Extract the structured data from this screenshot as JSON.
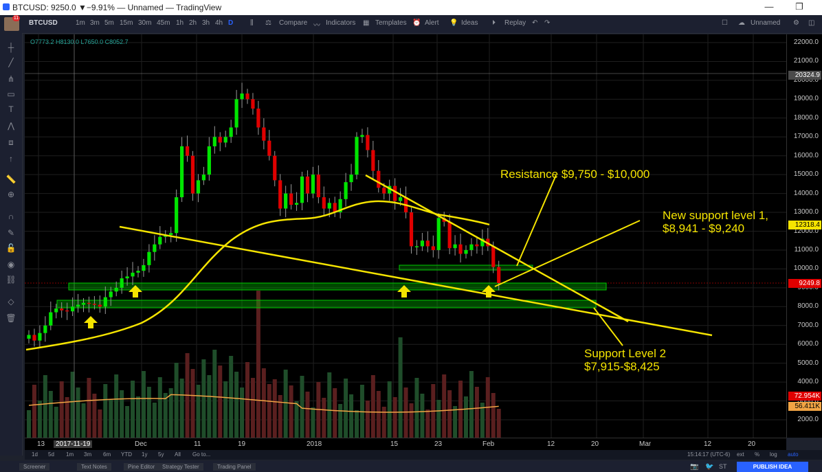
{
  "window": {
    "title": "BTCUSD: 9250.0 ▼−9.91% — Unnamed — TradingView",
    "minimize": "—",
    "restore": "❐"
  },
  "user": {
    "notification_count": "11"
  },
  "toolbar": {
    "symbol": "BTCUSD",
    "intervals": [
      "1m",
      "3m",
      "5m",
      "15m",
      "30m",
      "45m",
      "1h",
      "2h",
      "3h",
      "4h",
      "D"
    ],
    "active_interval": "D",
    "compare": "Compare",
    "indicators": "Indicators",
    "templates": "Templates",
    "alert": "Alert",
    "ideas": "Ideas",
    "replay": "Replay",
    "layout_name": "Unnamed"
  },
  "legend": {
    "ohlc": "O7773.2 H8130.0 L7650.0 C8052.7"
  },
  "colors": {
    "up": "#00e500",
    "down": "#e00000",
    "line": "#f5e400",
    "zone": "#00cc00",
    "ma": "#f2a444"
  },
  "price_axis": {
    "ticks": [
      "22000.0",
      "21000.0",
      "20000.0",
      "19000.0",
      "18000.0",
      "17000.0",
      "16000.0",
      "15000.0",
      "14000.0",
      "13000.0",
      "12000.0",
      "11000.0",
      "10000.0",
      "9000.0",
      "8000.0",
      "7000.0",
      "6000.0",
      "5000.0",
      "4000.0",
      "3000.0",
      "2000.0"
    ],
    "labels": {
      "crosshair": "20324.9",
      "ma": "12318.4",
      "last": "9249.8",
      "vol1": "72.954K",
      "vol2": "56.411K"
    }
  },
  "time_axis": {
    "ticks": [
      "13",
      "2017-11-19",
      "Dec",
      "11",
      "19",
      "2018",
      "15",
      "23",
      "Feb",
      "12",
      "20",
      "Mar",
      "12",
      "20"
    ]
  },
  "annotations": {
    "resistance": "Resistance $9,750 - $10,000",
    "new_support_1": "New support level 1,",
    "new_support_2": "$8,941 - $9,240",
    "support2_1": "Support Level 2",
    "support2_2": "$7,915-$8,425"
  },
  "range_bar": {
    "items": [
      "1d",
      "5d",
      "1m",
      "3m",
      "6m",
      "YTD",
      "1y",
      "5y",
      "All",
      "Go to..."
    ],
    "time": "15:14:17 (UTC-6)",
    "opts": [
      "ext",
      "%",
      "log",
      "auto"
    ]
  },
  "bottom_bar": {
    "tabs": [
      "Screener",
      "Text Notes",
      "Pine Editor",
      "Strategy Tester",
      "Trading Panel"
    ],
    "publish": "PUBLISH IDEA",
    "st": "ST"
  }
}
